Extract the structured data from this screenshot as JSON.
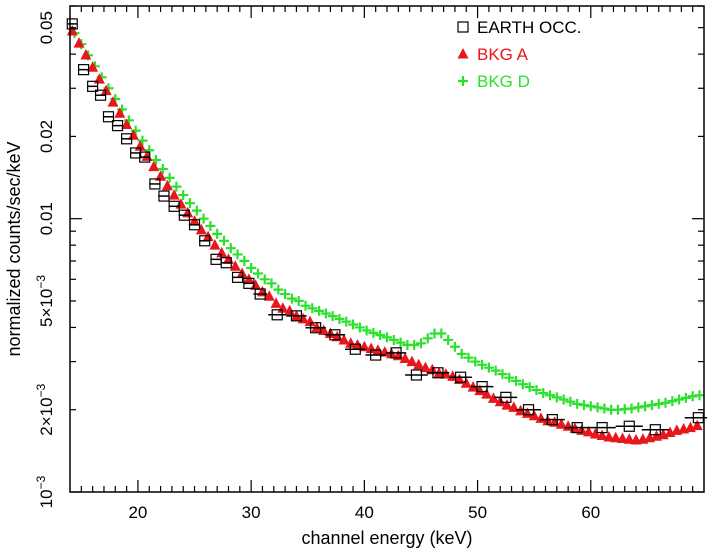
{
  "chart_data": {
    "type": "scatter",
    "title": "",
    "xlabel": "channel energy (keV)",
    "ylabel": "normalized counts/sec/keV",
    "x_scale": "linear",
    "y_scale": "log",
    "xlim": [
      14,
      70
    ],
    "ylim": [
      0.001,
      0.06
    ],
    "x_ticks": [
      20,
      30,
      40,
      50,
      60
    ],
    "x_tick_labels": [
      "20",
      "30",
      "40",
      "50",
      "60"
    ],
    "y_ticks": [
      0.001,
      0.002,
      0.005,
      0.01,
      0.02,
      0.05
    ],
    "y_tick_labels": [
      {
        "base": "10",
        "sup": "−3"
      },
      {
        "base": "2×10",
        "sup": "−3"
      },
      {
        "base": "5×10",
        "sup": "−3"
      },
      {
        "base": "0.01",
        "sup": ""
      },
      {
        "base": "0.02",
        "sup": ""
      },
      {
        "base": "0.05",
        "sup": ""
      }
    ],
    "legend_position": "top-right",
    "series": [
      {
        "name": "EARTH OCC.",
        "marker": "open-square",
        "color": "#000000",
        "x": [
          14.2,
          15.2,
          16.0,
          16.7,
          17.4,
          18.2,
          19.0,
          19.8,
          20.6,
          21.5,
          22.3,
          23.2,
          24.1,
          25.0,
          25.9,
          26.9,
          27.8,
          28.8,
          29.8,
          30.8,
          32.3,
          34.0,
          35.7,
          37.4,
          39.2,
          41.0,
          42.8,
          44.6,
          46.5,
          48.5,
          50.4,
          52.5,
          54.5,
          56.6,
          58.8,
          61.0,
          63.4,
          65.7,
          69.5
        ],
        "y": [
          0.0516,
          0.0351,
          0.0305,
          0.0283,
          0.0236,
          0.0219,
          0.0196,
          0.0174,
          0.0168,
          0.0134,
          0.0121,
          0.0111,
          0.0103,
          0.0095,
          0.0083,
          0.0071,
          0.0069,
          0.0061,
          0.0058,
          0.0053,
          0.00445,
          0.00441,
          0.00399,
          0.00376,
          0.00333,
          0.00317,
          0.00323,
          0.00268,
          0.00273,
          0.00263,
          0.00243,
          0.00222,
          0.002,
          0.00184,
          0.00172,
          0.00172,
          0.00174,
          0.00169,
          0.00187
        ],
        "x_err": [
          0.4,
          0.4,
          0.4,
          0.4,
          0.4,
          0.4,
          0.4,
          0.4,
          0.5,
          0.5,
          0.5,
          0.5,
          0.5,
          0.5,
          0.5,
          0.5,
          0.5,
          0.5,
          0.5,
          0.6,
          0.8,
          0.9,
          0.9,
          0.9,
          0.9,
          0.9,
          0.9,
          1.0,
          1.0,
          1.0,
          1.0,
          1.0,
          1.1,
          1.1,
          1.1,
          1.2,
          1.2,
          1.2,
          1.2
        ]
      },
      {
        "name": "BKG A",
        "marker": "filled-triangle",
        "color": "#e8171c",
        "x": [
          14.2,
          14.8,
          15.4,
          16.0,
          16.6,
          17.2,
          17.8,
          18.4,
          19.0,
          19.6,
          20.2,
          20.8,
          21.4,
          22.0,
          22.6,
          23.2,
          23.8,
          24.4,
          25.0,
          25.6,
          26.2,
          26.8,
          27.4,
          28.0,
          28.6,
          29.2,
          29.8,
          30.4,
          31.0,
          31.6,
          32.2,
          32.8,
          33.4,
          34.0,
          34.6,
          35.2,
          35.8,
          36.4,
          37.0,
          37.6,
          38.2,
          38.8,
          39.4,
          40.0,
          40.6,
          41.2,
          41.8,
          42.4,
          43.0,
          43.6,
          44.2,
          44.8,
          45.4,
          46.0,
          46.6,
          47.2,
          47.8,
          48.4,
          49.0,
          49.6,
          50.2,
          50.8,
          51.4,
          52.0,
          52.6,
          53.2,
          53.8,
          54.4,
          55.0,
          55.6,
          56.2,
          56.8,
          57.4,
          58.0,
          58.6,
          59.2,
          59.8,
          60.4,
          61.0,
          61.6,
          62.2,
          62.8,
          63.4,
          64.0,
          64.6,
          65.2,
          65.8,
          66.4,
          67.0,
          67.6,
          68.2,
          68.8,
          69.4
        ],
        "y": [
          0.0486,
          0.0439,
          0.0397,
          0.0358,
          0.0324,
          0.0294,
          0.0267,
          0.0243,
          0.0221,
          0.0202,
          0.0184,
          0.0169,
          0.0155,
          0.0143,
          0.0132,
          0.0122,
          0.0113,
          0.0105,
          0.0098,
          0.0091,
          0.0086,
          0.008,
          0.0075,
          0.0071,
          0.0067,
          0.0063,
          0.006,
          0.0057,
          0.0054,
          0.0052,
          0.0049,
          0.0047,
          0.0046,
          0.0044,
          0.0043,
          0.0042,
          0.004,
          0.0039,
          0.0038,
          0.0037,
          0.0036,
          0.0035,
          0.00345,
          0.0034,
          0.00335,
          0.0033,
          0.00325,
          0.0032,
          0.00315,
          0.00308,
          0.003,
          0.00292,
          0.00285,
          0.0028,
          0.00272,
          0.0027,
          0.00265,
          0.00258,
          0.0025,
          0.00242,
          0.00235,
          0.00228,
          0.0022,
          0.00214,
          0.00208,
          0.00204,
          0.00198,
          0.00194,
          0.0019,
          0.00186,
          0.00182,
          0.0018,
          0.00177,
          0.00174,
          0.00171,
          0.00168,
          0.00166,
          0.00163,
          0.00161,
          0.00159,
          0.00158,
          0.00157,
          0.00156,
          0.00155,
          0.00156,
          0.00158,
          0.0016,
          0.00162,
          0.00165,
          0.00168,
          0.0017,
          0.00172,
          0.00175
        ]
      },
      {
        "name": "BKG D",
        "marker": "plus",
        "color": "#2ee02e",
        "x": [
          14.4,
          15.0,
          15.6,
          16.2,
          16.8,
          17.4,
          18.0,
          18.6,
          19.2,
          19.8,
          20.4,
          21.0,
          21.6,
          22.2,
          22.8,
          23.4,
          24.0,
          24.6,
          25.2,
          25.8,
          26.4,
          27.0,
          27.6,
          28.2,
          28.8,
          29.4,
          30.0,
          30.6,
          31.2,
          31.8,
          32.4,
          33.0,
          33.6,
          34.2,
          34.8,
          35.4,
          36.0,
          36.6,
          37.2,
          37.8,
          38.4,
          39.0,
          39.6,
          40.2,
          40.8,
          41.4,
          42.0,
          42.6,
          43.2,
          43.8,
          44.4,
          45.0,
          45.6,
          46.2,
          46.8,
          47.4,
          48.0,
          48.6,
          49.2,
          49.8,
          50.4,
          51.0,
          51.6,
          52.2,
          52.8,
          53.4,
          54.0,
          54.6,
          55.2,
          55.8,
          56.4,
          57.0,
          57.6,
          58.2,
          58.8,
          59.4,
          60.0,
          60.6,
          61.2,
          61.8,
          62.4,
          63.0,
          63.6,
          64.2,
          64.8,
          65.4,
          66.0,
          66.6,
          67.2,
          67.8,
          68.4,
          69.0,
          69.6
        ],
        "y": [
          0.0478,
          0.0435,
          0.0396,
          0.0361,
          0.0329,
          0.03,
          0.0274,
          0.0251,
          0.0229,
          0.021,
          0.0193,
          0.0178,
          0.0164,
          0.0152,
          0.0141,
          0.0131,
          0.0122,
          0.0114,
          0.0107,
          0.01,
          0.0094,
          0.0088,
          0.0083,
          0.0078,
          0.0074,
          0.007,
          0.0066,
          0.0063,
          0.006,
          0.0058,
          0.0055,
          0.0053,
          0.0051,
          0.005,
          0.0048,
          0.0047,
          0.0046,
          0.0045,
          0.0044,
          0.0043,
          0.0042,
          0.0041,
          0.004,
          0.0039,
          0.00382,
          0.00375,
          0.00368,
          0.0036,
          0.00352,
          0.00345,
          0.00345,
          0.0035,
          0.00365,
          0.0038,
          0.0038,
          0.0036,
          0.0034,
          0.0032,
          0.0031,
          0.003,
          0.00292,
          0.00285,
          0.00278,
          0.0027,
          0.00262,
          0.00255,
          0.00248,
          0.00242,
          0.00236,
          0.0023,
          0.00226,
          0.00222,
          0.00218,
          0.00214,
          0.0021,
          0.00208,
          0.00206,
          0.00204,
          0.00202,
          0.002,
          0.002,
          0.00201,
          0.00202,
          0.00204,
          0.00206,
          0.00208,
          0.0021,
          0.00212,
          0.00215,
          0.00218,
          0.00221,
          0.00224,
          0.00226
        ]
      }
    ]
  }
}
